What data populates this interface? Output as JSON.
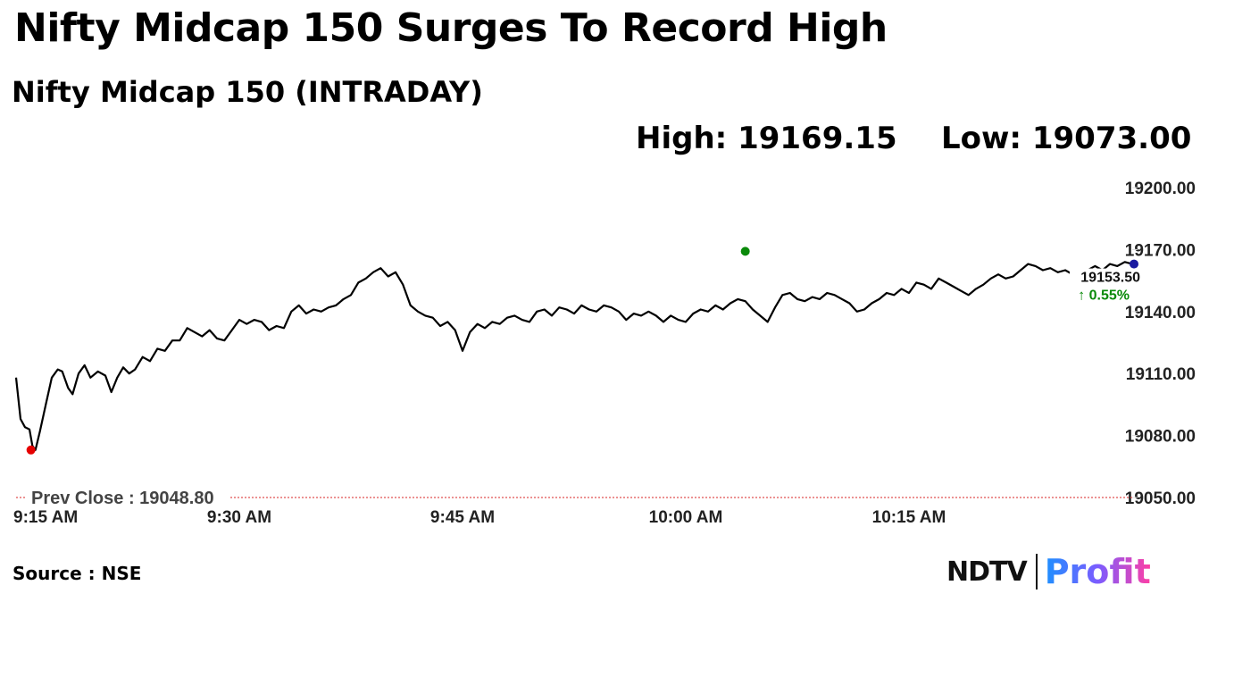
{
  "headline": "Nifty Midcap 150 Surges To Record High",
  "chart_data": {
    "type": "line",
    "title": "Nifty Midcap 150 (INTRADAY)",
    "high_label": "High: 19169.15",
    "low_label": "Low: 19073.00",
    "prev_close_label": "Prev Close : 19048.80",
    "prev_close": 19048.8,
    "high": 19169.15,
    "low": 19073.0,
    "last_value": "19153.50",
    "change": "↑ 0.55%",
    "ylim": [
      19050,
      19200
    ],
    "yticks": [
      "19200.00",
      "19170.00",
      "19140.00",
      "19110.00",
      "19080.00",
      "19050.00"
    ],
    "xticks": [
      "9:15 AM",
      "9:30 AM",
      "9:45 AM",
      "10:00 AM",
      "10:15 AM"
    ],
    "xlim": [
      0,
      75
    ],
    "x_unit": "minutes after 9:15 AM",
    "high_minute": 49,
    "low_minute": 1,
    "series": [
      {
        "values": [
          [
            0,
            19108
          ],
          [
            0.3,
            19088
          ],
          [
            0.6,
            19084
          ],
          [
            0.9,
            19083
          ],
          [
            1.1,
            19075
          ],
          [
            1.3,
            19073
          ],
          [
            1.6,
            19082
          ],
          [
            2,
            19095
          ],
          [
            2.4,
            19108
          ],
          [
            2.8,
            19112
          ],
          [
            3.1,
            19111
          ],
          [
            3.5,
            19103
          ],
          [
            3.8,
            19100
          ],
          [
            4.2,
            19110
          ],
          [
            4.6,
            19114
          ],
          [
            5,
            19108
          ],
          [
            5.5,
            19111
          ],
          [
            6,
            19109
          ],
          [
            6.4,
            19101
          ],
          [
            6.8,
            19108
          ],
          [
            7.2,
            19113
          ],
          [
            7.6,
            19110
          ],
          [
            8,
            19112
          ],
          [
            8.5,
            19118
          ],
          [
            9,
            19116
          ],
          [
            9.5,
            19122
          ],
          [
            10,
            19121
          ],
          [
            10.5,
            19126
          ],
          [
            11,
            19126
          ],
          [
            11.5,
            19132
          ],
          [
            12,
            19130
          ],
          [
            12.5,
            19128
          ],
          [
            13,
            19131
          ],
          [
            13.5,
            19127
          ],
          [
            14,
            19126
          ],
          [
            14.5,
            19131
          ],
          [
            15,
            19136
          ],
          [
            15.5,
            19134
          ],
          [
            16,
            19136
          ],
          [
            16.5,
            19135
          ],
          [
            17,
            19131
          ],
          [
            17.5,
            19133
          ],
          [
            18,
            19132
          ],
          [
            18.5,
            19140
          ],
          [
            19,
            19143
          ],
          [
            19.5,
            19139
          ],
          [
            20,
            19141
          ],
          [
            20.5,
            19140
          ],
          [
            21,
            19142
          ],
          [
            21.5,
            19143
          ],
          [
            22,
            19146
          ],
          [
            22.5,
            19148
          ],
          [
            23,
            19154
          ],
          [
            23.5,
            19156
          ],
          [
            24,
            19159
          ],
          [
            24.5,
            19161
          ],
          [
            25,
            19157
          ],
          [
            25.5,
            19159
          ],
          [
            26,
            19153
          ],
          [
            26.5,
            19143
          ],
          [
            27,
            19140
          ],
          [
            27.5,
            19138
          ],
          [
            28,
            19137
          ],
          [
            28.5,
            19133
          ],
          [
            29,
            19135
          ],
          [
            29.5,
            19131
          ],
          [
            30,
            19121
          ],
          [
            30.5,
            19130
          ],
          [
            31,
            19134
          ],
          [
            31.5,
            19132
          ],
          [
            32,
            19135
          ],
          [
            32.5,
            19134
          ],
          [
            33,
            19137
          ],
          [
            33.5,
            19138
          ],
          [
            34,
            19136
          ],
          [
            34.5,
            19135
          ],
          [
            35,
            19140
          ],
          [
            35.5,
            19141
          ],
          [
            36,
            19138
          ],
          [
            36.5,
            19142
          ],
          [
            37,
            19141
          ],
          [
            37.5,
            19139
          ],
          [
            38,
            19143
          ],
          [
            38.5,
            19141
          ],
          [
            39,
            19140
          ],
          [
            39.5,
            19143
          ],
          [
            40,
            19142
          ],
          [
            40.5,
            19140
          ],
          [
            41,
            19136
          ],
          [
            41.5,
            19139
          ],
          [
            42,
            19138
          ],
          [
            42.5,
            19140
          ],
          [
            43,
            19138
          ],
          [
            43.5,
            19135
          ],
          [
            44,
            19138
          ],
          [
            44.5,
            19136
          ],
          [
            45,
            19135
          ],
          [
            45.5,
            19139
          ],
          [
            46,
            19141
          ],
          [
            46.5,
            19140
          ],
          [
            47,
            19143
          ],
          [
            47.5,
            19141
          ],
          [
            48,
            19144
          ],
          [
            48.5,
            19146
          ],
          [
            49,
            19145
          ],
          [
            49.5,
            19141
          ],
          [
            50,
            19138
          ],
          [
            50.5,
            19135
          ],
          [
            51,
            19142
          ],
          [
            51.5,
            19148
          ],
          [
            52,
            19149
          ],
          [
            52.5,
            19146
          ],
          [
            53,
            19145
          ],
          [
            53.5,
            19147
          ],
          [
            54,
            19146
          ],
          [
            54.5,
            19149
          ],
          [
            55,
            19148
          ],
          [
            55.5,
            19146
          ],
          [
            56,
            19144
          ],
          [
            56.5,
            19140
          ],
          [
            57,
            19141
          ],
          [
            57.5,
            19144
          ],
          [
            58,
            19146
          ],
          [
            58.5,
            19149
          ],
          [
            59,
            19148
          ],
          [
            59.5,
            19151
          ],
          [
            60,
            19149
          ],
          [
            60.5,
            19154
          ],
          [
            61,
            19153
          ],
          [
            61.5,
            19151
          ],
          [
            62,
            19156
          ],
          [
            62.5,
            19154
          ],
          [
            63,
            19152
          ],
          [
            63.5,
            19150
          ],
          [
            64,
            19148
          ],
          [
            64.5,
            19151
          ],
          [
            65,
            19153
          ],
          [
            65.5,
            19156
          ],
          [
            66,
            19158
          ],
          [
            66.5,
            19156
          ],
          [
            67,
            19157
          ],
          [
            67.5,
            19160
          ],
          [
            68,
            19163
          ],
          [
            68.5,
            19162
          ],
          [
            69,
            19160
          ],
          [
            69.5,
            19161
          ],
          [
            70,
            19159
          ],
          [
            70.5,
            19160
          ],
          [
            71,
            19158
          ],
          [
            71.5,
            19159
          ],
          [
            72,
            19160
          ],
          [
            72.5,
            19162
          ],
          [
            73,
            19160
          ],
          [
            73.5,
            19163
          ],
          [
            74,
            19162
          ],
          [
            74.5,
            19164
          ],
          [
            75,
            19163
          ]
        ]
      }
    ]
  },
  "source": "Source : NSE",
  "logo": {
    "brand": "NDTV",
    "product": "Profit"
  }
}
